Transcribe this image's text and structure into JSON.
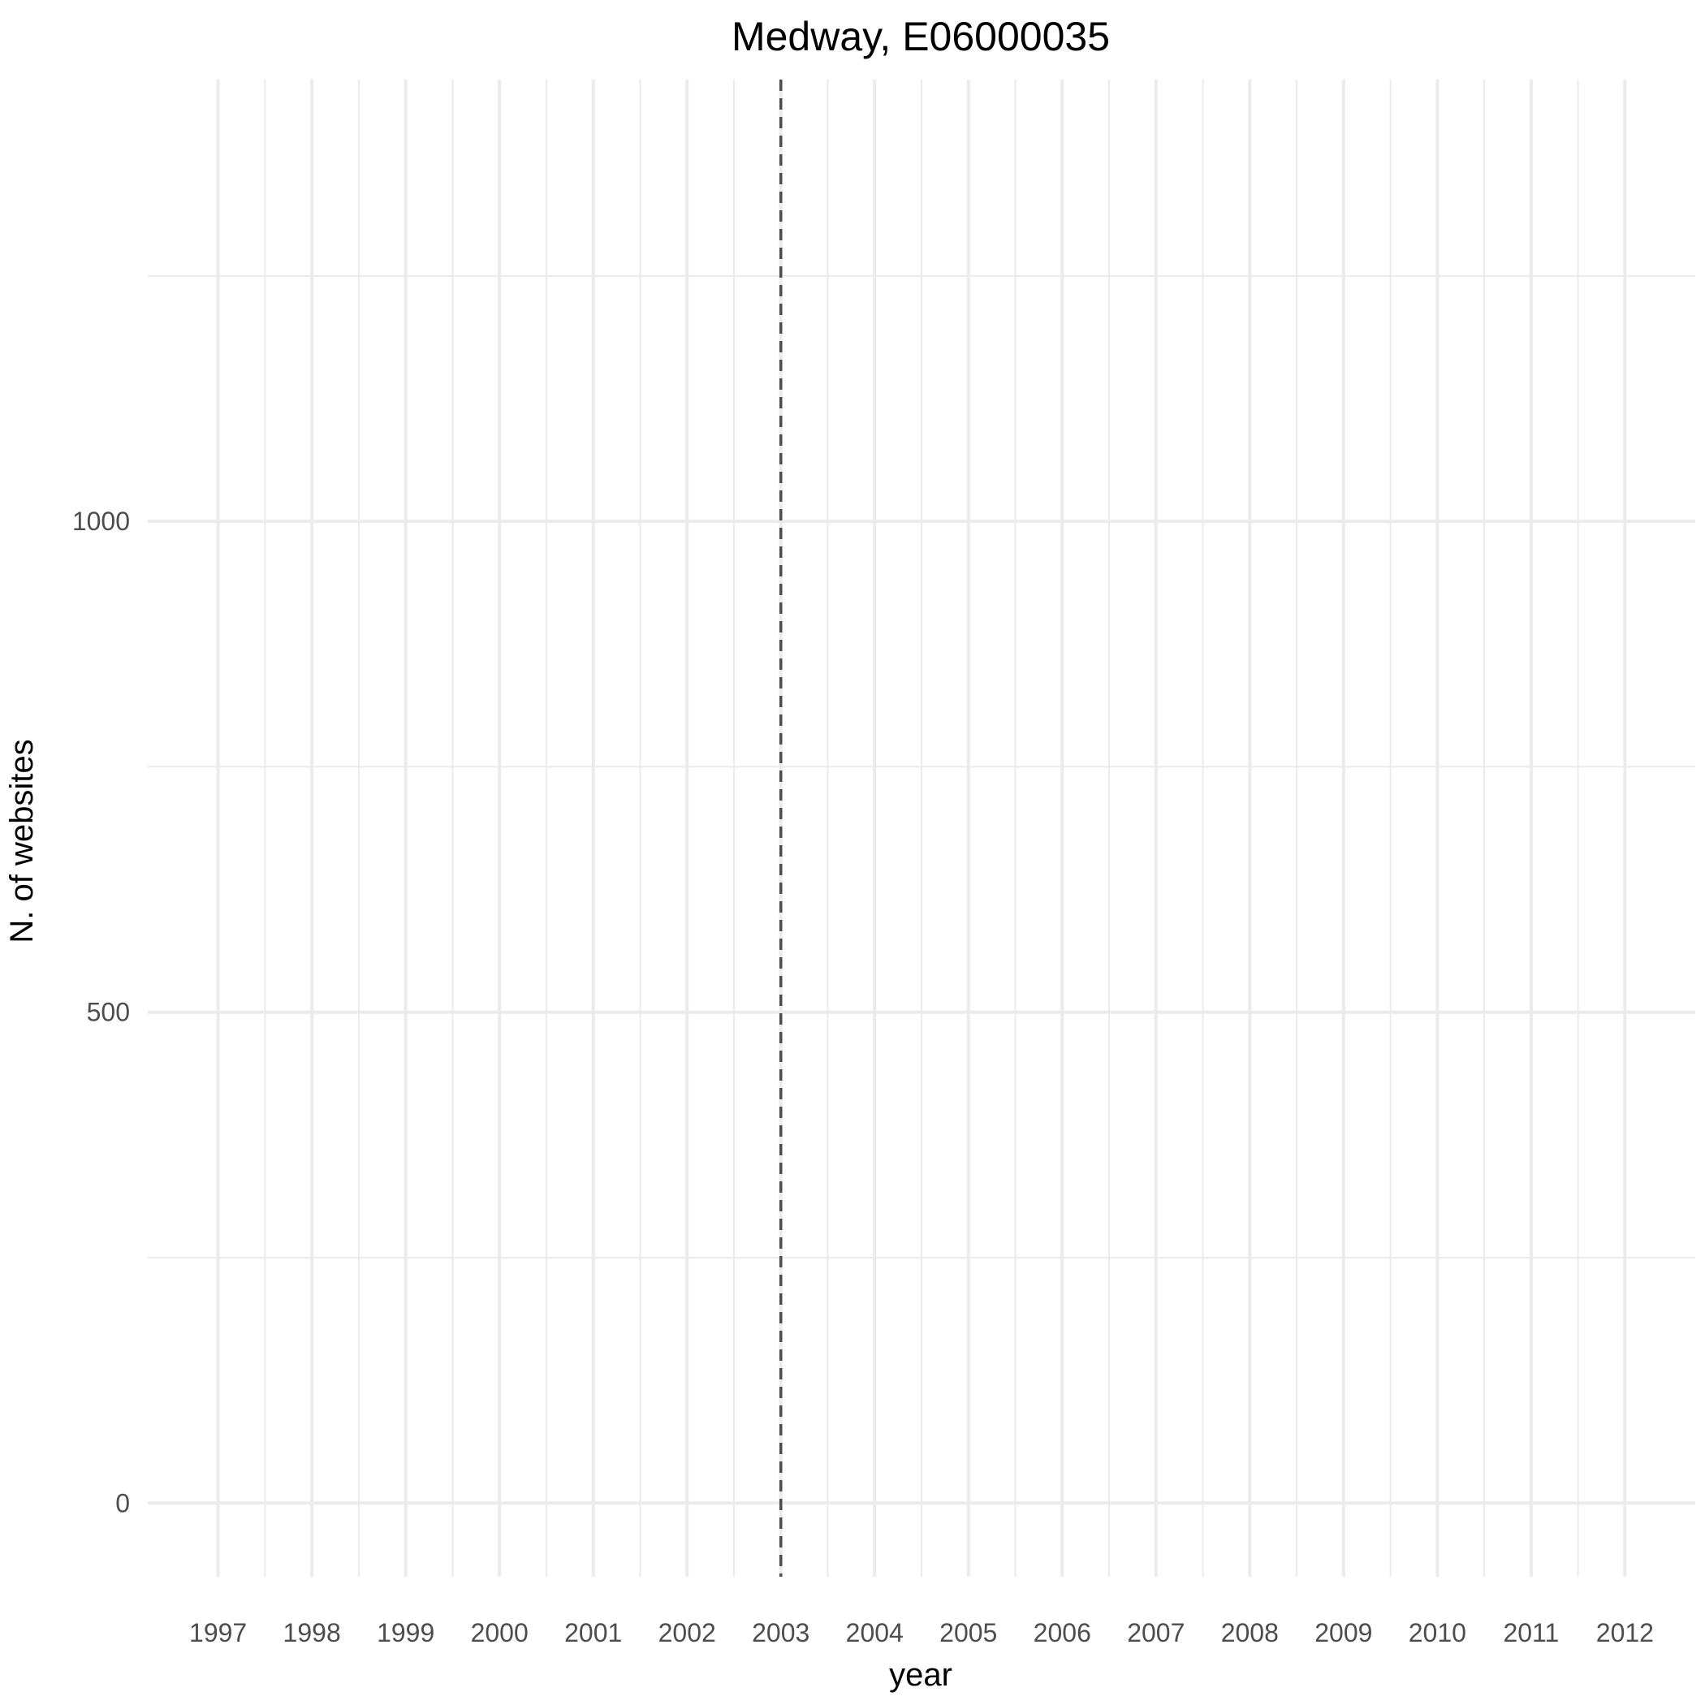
{
  "chart_data": {
    "type": "line",
    "title": "Medway, E06000035",
    "xlabel": "year",
    "ylabel": "N. of websites",
    "x_ticks": [
      "1997",
      "1998",
      "1999",
      "2000",
      "2001",
      "2002",
      "2003",
      "2004",
      "2005",
      "2006",
      "2007",
      "2008",
      "2009",
      "2010",
      "2011",
      "2012"
    ],
    "y_ticks": [
      0,
      500,
      1000
    ],
    "y_tick_labels": [
      "0",
      "500",
      "1000"
    ],
    "xlim": [
      1996.25,
      2012.75
    ],
    "ylim": [
      -75,
      1450
    ],
    "grid": true,
    "series": [],
    "reference_lines": [
      {
        "axis": "x",
        "value": 2003,
        "style": "dashed",
        "color": "#4d4d4d"
      }
    ],
    "colors": {
      "grid": "#ebebeb",
      "reference_line": "#4d4d4d",
      "tick_text": "#4d4d4d"
    }
  }
}
